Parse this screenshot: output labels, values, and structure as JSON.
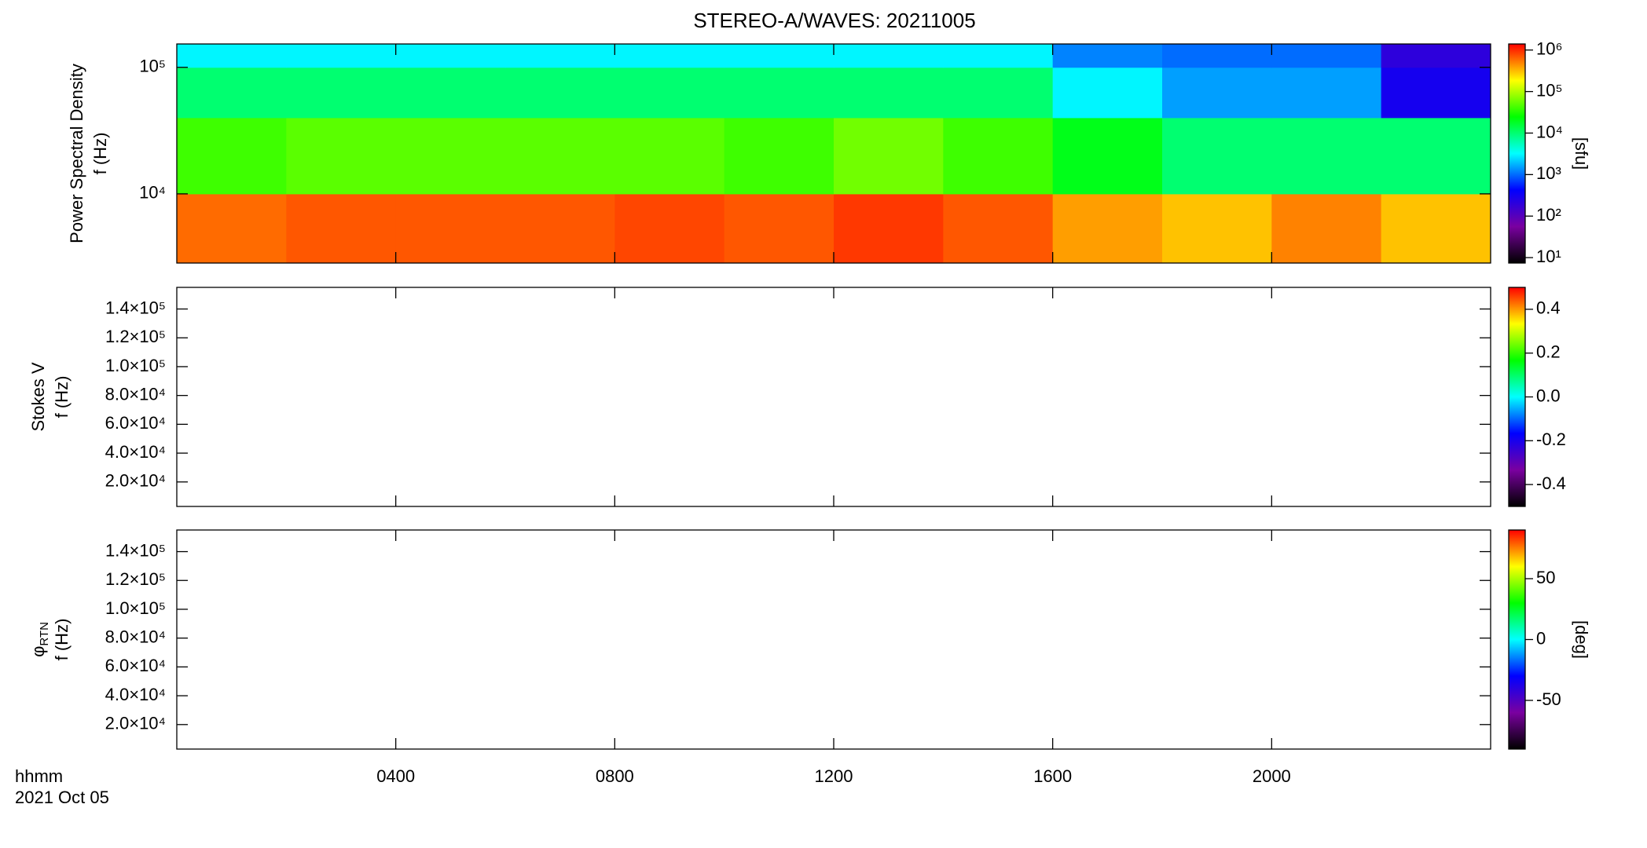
{
  "chart_data": [
    {
      "type": "heatmap",
      "title": "STEREO-A/WAVES: 20211005",
      "ylabel": [
        "Power Spectral Density",
        "f (Hz)"
      ],
      "ylog": true,
      "ylim": [
        2840,
        153000
      ],
      "yticks": [
        {
          "value": 10000,
          "label": "10⁴"
        },
        {
          "value": 100000,
          "label": "10⁵"
        }
      ],
      "x": [
        0,
        2,
        4,
        6,
        8,
        10,
        12,
        14,
        16,
        18,
        20,
        22,
        24
      ],
      "y": [
        2840,
        10000,
        40000,
        100000,
        153000
      ],
      "values": [
        [
          600000,
          700000,
          700000,
          700000,
          800000,
          700000,
          900000,
          700000,
          400000,
          300000,
          500000,
          300000
        ],
        [
          40000,
          50000,
          50000,
          50000,
          50000,
          40000,
          60000,
          40000,
          20000,
          10000,
          10000,
          10000
        ],
        [
          10000,
          10000,
          10000,
          10000,
          10000,
          10000,
          10000,
          10000,
          3000,
          1500,
          1500,
          300
        ],
        [
          3000,
          3000,
          3000,
          3000,
          3000,
          3000,
          3000,
          3000,
          1200,
          1000,
          1000,
          200
        ]
      ],
      "colorbar": {
        "log": true,
        "clim": [
          7.4,
          1400000
        ],
        "label": "[sfu]",
        "ticks": [
          {
            "value": 10,
            "label": "10¹"
          },
          {
            "value": 100,
            "label": "10²"
          },
          {
            "value": 1000,
            "label": "10³"
          },
          {
            "value": 10000,
            "label": "10⁴"
          },
          {
            "value": 100000,
            "label": "10⁵"
          },
          {
            "value": 1000000,
            "label": "10⁶"
          }
        ]
      }
    },
    {
      "type": "heatmap",
      "ylabel": [
        "Stokes V",
        "f (Hz)"
      ],
      "ylog": false,
      "ylim": [
        3000,
        155000
      ],
      "yticks": [
        {
          "value": 20000,
          "label": "2.0×10⁴"
        },
        {
          "value": 40000,
          "label": "4.0×10⁴"
        },
        {
          "value": 60000,
          "label": "6.0×10⁴"
        },
        {
          "value": 80000,
          "label": "8.0×10⁴"
        },
        {
          "value": 100000,
          "label": "1.0×10⁵"
        },
        {
          "value": 120000,
          "label": "1.2×10⁵"
        },
        {
          "value": 140000,
          "label": "1.4×10⁵"
        }
      ],
      "colorbar": {
        "log": false,
        "clim": [
          -0.5,
          0.5
        ],
        "ticks": [
          -0.4,
          -0.2,
          {
            "value": 0,
            "label": "0.0"
          },
          0.2,
          0.4
        ]
      }
    },
    {
      "type": "heatmap",
      "ylabel": [
        "f (Hz)"
      ],
      "ylabel_symbol": {
        "text": "φ",
        "subscript": "RTN"
      },
      "ylog": false,
      "ylim": [
        3000,
        155000
      ],
      "yticks": [
        {
          "value": 20000,
          "label": "2.0×10⁴"
        },
        {
          "value": 40000,
          "label": "4.0×10⁴"
        },
        {
          "value": 60000,
          "label": "6.0×10⁴"
        },
        {
          "value": 80000,
          "label": "8.0×10⁴"
        },
        {
          "value": 100000,
          "label": "1.0×10⁵"
        },
        {
          "value": 120000,
          "label": "1.2×10⁵"
        },
        {
          "value": 140000,
          "label": "1.4×10⁵"
        }
      ],
      "colorbar": {
        "log": false,
        "clim": [
          -90,
          90
        ],
        "label": "[deg]",
        "ticks": [
          -50,
          0,
          50
        ]
      },
      "xlabel": [
        "hhmm",
        "2021 Oct 05"
      ],
      "xlim": [
        0,
        24
      ],
      "xticks": [
        {
          "value": 4,
          "label": "0400"
        },
        {
          "value": 8,
          "label": "0800"
        },
        {
          "value": 12,
          "label": "1200"
        },
        {
          "value": 16,
          "label": "1600"
        },
        {
          "value": 20,
          "label": "2000"
        }
      ]
    }
  ],
  "colormap": [
    "#000000",
    "#7a00a0",
    "#0000ff",
    "#00ffff",
    "#00ff00",
    "#ffff00",
    "#ff0000"
  ]
}
